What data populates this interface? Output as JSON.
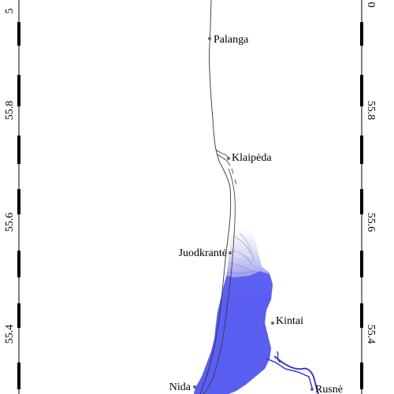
{
  "map": {
    "cities": [
      {
        "key": "palanga",
        "name": "Palanga"
      },
      {
        "key": "klaipeda",
        "name": "Klaipėda"
      },
      {
        "key": "juodkrante",
        "name": "Juodkrantė"
      },
      {
        "key": "kintai",
        "name": "Kintai"
      },
      {
        "key": "nida",
        "name": "Nida"
      },
      {
        "key": "rusne",
        "name": "Rusnė"
      }
    ],
    "axis": {
      "left_ticks": [
        "55.8",
        "55.6",
        "55.4"
      ],
      "right_ticks": [
        "55.8",
        "55.6",
        "55.4"
      ],
      "top_left_partial": "5",
      "top_right_partial": "0"
    },
    "colors": {
      "lagoon": "#5b5ef0",
      "lagoon_light": "#eeeefc",
      "river": "#3b3dc8",
      "coastline": "#333333"
    }
  }
}
